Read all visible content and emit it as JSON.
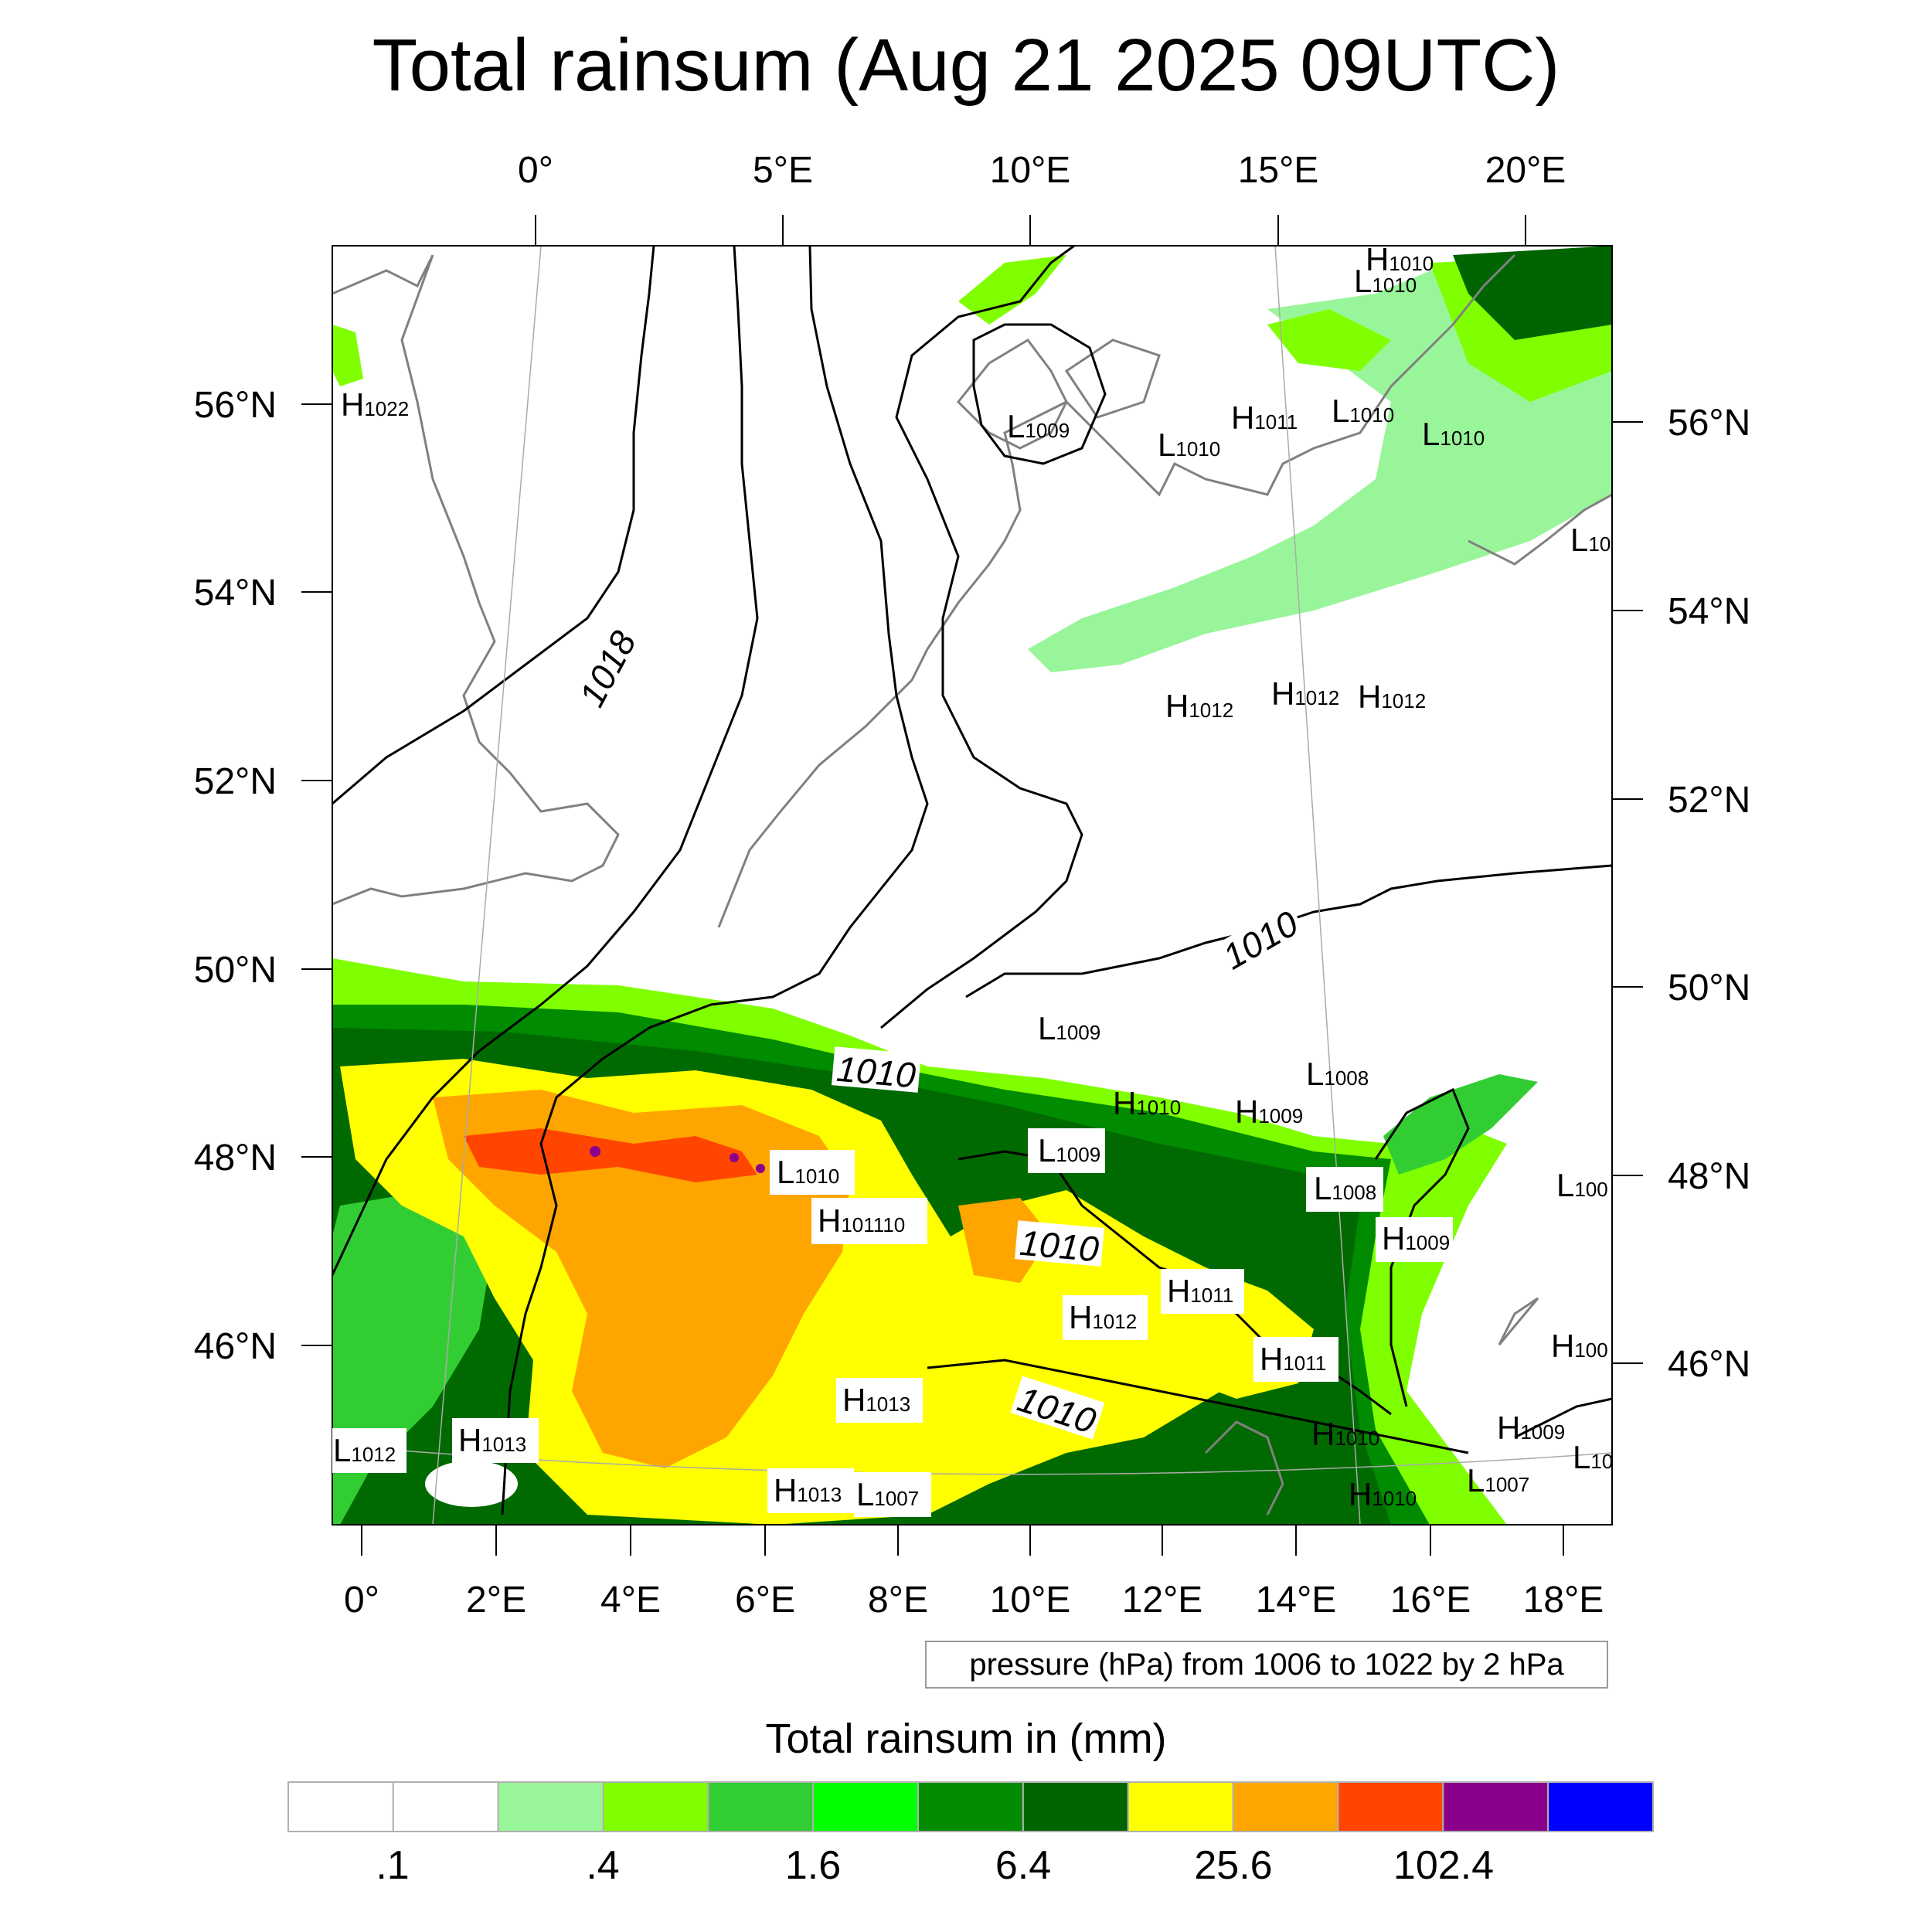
{
  "title": "Total rainsum (Aug 21 2025 09UTC)",
  "top_ticks": [
    "0°",
    "5°E",
    "10°E",
    "15°E",
    "20°E"
  ],
  "bottom_ticks": [
    "0°",
    "2°E",
    "4°E",
    "6°E",
    "8°E",
    "10°E",
    "12°E",
    "14°E",
    "16°E",
    "18°E"
  ],
  "left_ticks": [
    "56°N",
    "54°N",
    "52°N",
    "50°N",
    "48°N",
    "46°N"
  ],
  "right_ticks": [
    "56°N",
    "54°N",
    "52°N",
    "50°N",
    "48°N",
    "46°N"
  ],
  "pressure_note": "pressure (hPa) from 1006 to 1022 by 2 hPa",
  "colorbar": {
    "title": "Total rainsum in (mm)",
    "colors": [
      "#ffffff",
      "#ffffff",
      "#99f599",
      "#7fff00",
      "#32cd32",
      "#00ff00",
      "#008b00",
      "#006400",
      "#ffff00",
      "#ffa500",
      "#ff4500",
      "#8b008b",
      "#0000ff"
    ],
    "labels": [
      ".1",
      ".4",
      "1.6",
      "6.4",
      "25.6",
      "102.4"
    ]
  },
  "isobar_labels": [
    "1018",
    "1010",
    "1010",
    "1010",
    "1010"
  ],
  "pressure_centers": [
    {
      "type": "H",
      "value": "1010"
    },
    {
      "type": "L",
      "value": "1010"
    },
    {
      "type": "H",
      "value": "1022"
    },
    {
      "type": "L",
      "value": "1009"
    },
    {
      "type": "L",
      "value": "1010"
    },
    {
      "type": "H",
      "value": "1011"
    },
    {
      "type": "L",
      "value": "1010"
    },
    {
      "type": "L",
      "value": "1010"
    },
    {
      "type": "H",
      "value": "1012"
    },
    {
      "type": "H",
      "value": "1012"
    },
    {
      "type": "H",
      "value": "1012"
    },
    {
      "type": "L",
      "value": "1009"
    },
    {
      "type": "L",
      "value": "1008"
    },
    {
      "type": "H",
      "value": "1010"
    },
    {
      "type": "H",
      "value": "1009"
    },
    {
      "type": "L",
      "value": "1009"
    },
    {
      "type": "L",
      "value": "1010"
    },
    {
      "type": "H",
      "value": "1011"
    },
    {
      "type": "L",
      "value": "1008"
    },
    {
      "type": "H",
      "value": "1009"
    },
    {
      "type": "H",
      "value": "1011"
    },
    {
      "type": "H",
      "value": "1012"
    },
    {
      "type": "H",
      "value": "1011"
    },
    {
      "type": "H",
      "value": "1013"
    },
    {
      "type": "H",
      "value": "1013"
    },
    {
      "type": "L",
      "value": "1012"
    },
    {
      "type": "H",
      "value": "1013"
    },
    {
      "type": "L",
      "value": "1007"
    },
    {
      "type": "H",
      "value": "1010"
    },
    {
      "type": "H",
      "value": "1010"
    },
    {
      "type": "H",
      "value": "1009"
    },
    {
      "type": "L",
      "value": "1007"
    },
    {
      "type": "L",
      "value": "10"
    },
    {
      "type": "L",
      "value": "100"
    },
    {
      "type": "H",
      "value": "100"
    },
    {
      "type": "L",
      "value": "10"
    }
  ]
}
